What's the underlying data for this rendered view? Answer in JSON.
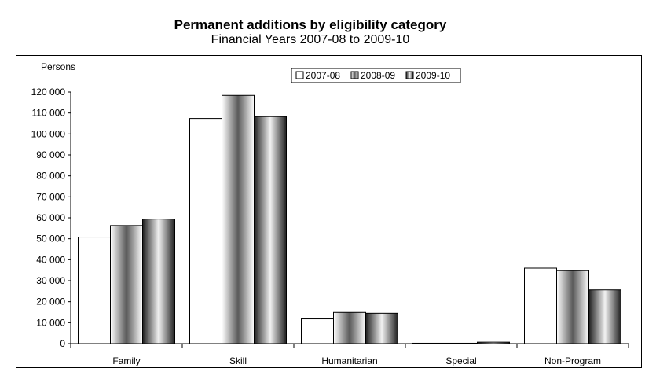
{
  "chart_data": {
    "type": "bar",
    "title": "Permanent additions by eligibility category",
    "subtitle": "Financial Years 2007-08 to 2009-10",
    "ylabel": "Persons",
    "xlabel": "",
    "ylim": [
      0,
      120000
    ],
    "yticks": [
      0,
      10000,
      20000,
      30000,
      40000,
      50000,
      60000,
      70000,
      80000,
      90000,
      100000,
      110000,
      120000
    ],
    "ytick_labels": [
      "0",
      "10 000",
      "20 000",
      "30 000",
      "40 000",
      "50 000",
      "60 000",
      "70 000",
      "80 000",
      "90 000",
      "100 000",
      "110 000",
      "120 000"
    ],
    "categories": [
      "Family",
      "Skill",
      "Humanitarian",
      "Special",
      "Non-Program"
    ],
    "series": [
      {
        "name": "2007-08",
        "values": [
          50800,
          107400,
          11800,
          200,
          36000
        ]
      },
      {
        "name": "2008-09",
        "values": [
          56300,
          118400,
          14900,
          200,
          34800
        ]
      },
      {
        "name": "2009-10",
        "values": [
          59400,
          108300,
          14500,
          700,
          25600
        ]
      }
    ],
    "legend_position": "top-center",
    "grid": false
  }
}
